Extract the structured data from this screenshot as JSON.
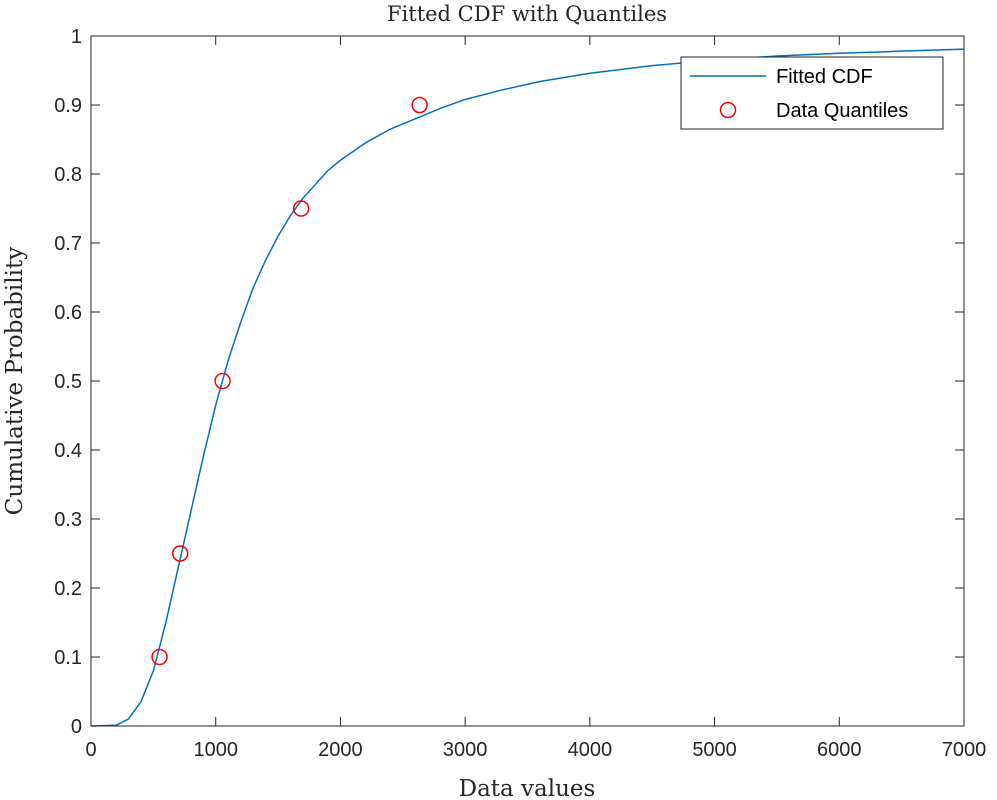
{
  "chart_data": {
    "type": "line",
    "title": "Fitted CDF with Quantiles",
    "xlabel": "Data values",
    "ylabel": "Cumulative Probability",
    "xlim": [
      0,
      7000
    ],
    "ylim": [
      0,
      1
    ],
    "x_ticks": [
      0,
      1000,
      2000,
      3000,
      4000,
      5000,
      6000,
      7000
    ],
    "y_ticks": [
      0,
      0.1,
      0.2,
      0.3,
      0.4,
      0.5,
      0.6,
      0.7,
      0.8,
      0.9,
      1
    ],
    "y_tick_labels": [
      "0",
      "0.1",
      "0.2",
      "0.3",
      "0.4",
      "0.5",
      "0.6",
      "0.7",
      "0.8",
      "0.9",
      "1"
    ],
    "grid": false,
    "legend_position": "top-right",
    "series": [
      {
        "name": "Fitted CDF",
        "kind": "line",
        "color": "#0072BD",
        "x": [
          0,
          200,
          300,
          400,
          500,
          600,
          700,
          800,
          900,
          1000,
          1100,
          1200,
          1300,
          1400,
          1500,
          1600,
          1700,
          1800,
          1900,
          2000,
          2200,
          2400,
          2600,
          2800,
          3000,
          3300,
          3600,
          4000,
          4500,
          5000,
          5500,
          6000,
          6500,
          7000
        ],
        "y": [
          0,
          0.001,
          0.01,
          0.035,
          0.08,
          0.15,
          0.23,
          0.31,
          0.39,
          0.465,
          0.53,
          0.585,
          0.635,
          0.675,
          0.71,
          0.74,
          0.765,
          0.785,
          0.805,
          0.82,
          0.845,
          0.865,
          0.88,
          0.895,
          0.908,
          0.922,
          0.934,
          0.946,
          0.957,
          0.965,
          0.971,
          0.975,
          0.978,
          0.981
        ]
      },
      {
        "name": "Data Quantiles",
        "kind": "scatter",
        "marker": "circle",
        "color": "#FF0000",
        "x": [
          550,
          715,
          1055,
          1685,
          2635
        ],
        "y": [
          0.1,
          0.25,
          0.5,
          0.75,
          0.9
        ]
      }
    ]
  }
}
